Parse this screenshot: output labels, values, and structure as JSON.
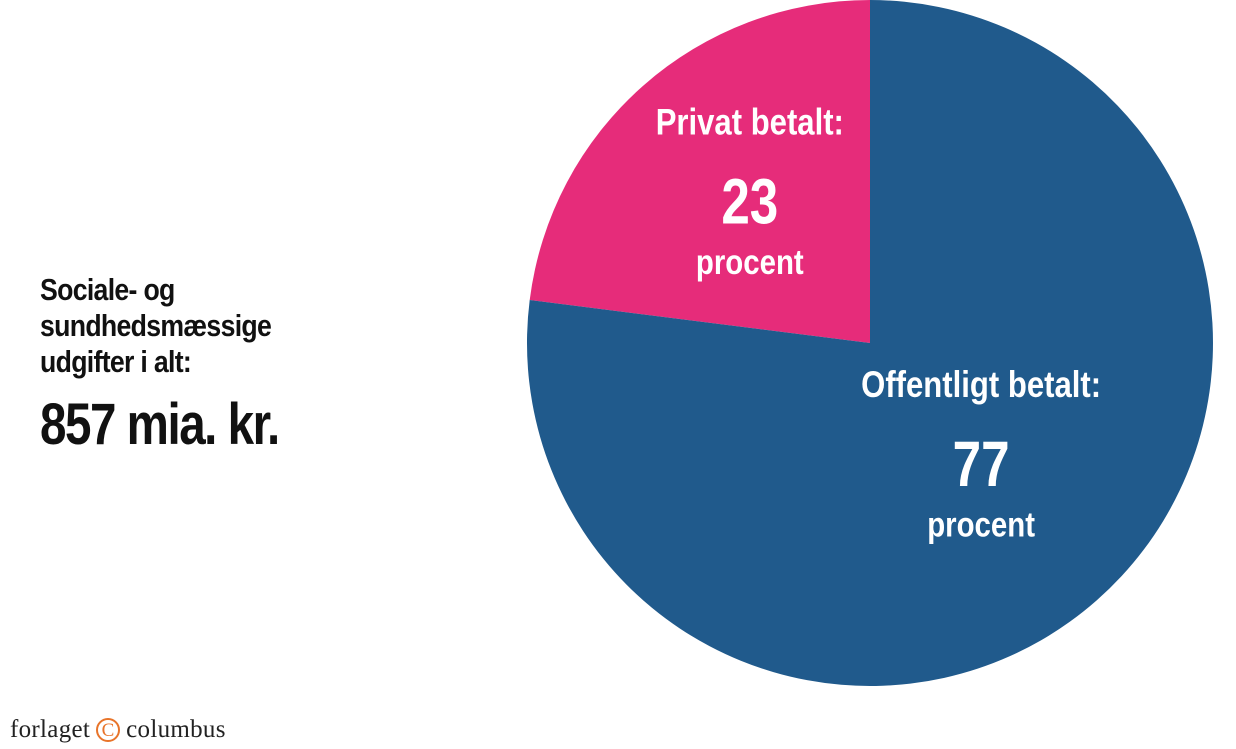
{
  "caption": {
    "label": "Sociale- og sundhedsmæssige udgifter i alt:",
    "value": "857 mia. kr."
  },
  "publisher": {
    "before": "forlaget",
    "logo_glyph": "C",
    "after": "columbus",
    "logo_color": "#e8742a"
  },
  "chart_data": {
    "type": "pie",
    "unit": "procent",
    "slices": [
      {
        "name": "Privat betalt:",
        "value": 23,
        "unit_label": "procent",
        "color": "#e62c7a"
      },
      {
        "name": "Offentligt betalt:",
        "value": 77,
        "unit_label": "procent",
        "color": "#205a8c"
      }
    ]
  }
}
